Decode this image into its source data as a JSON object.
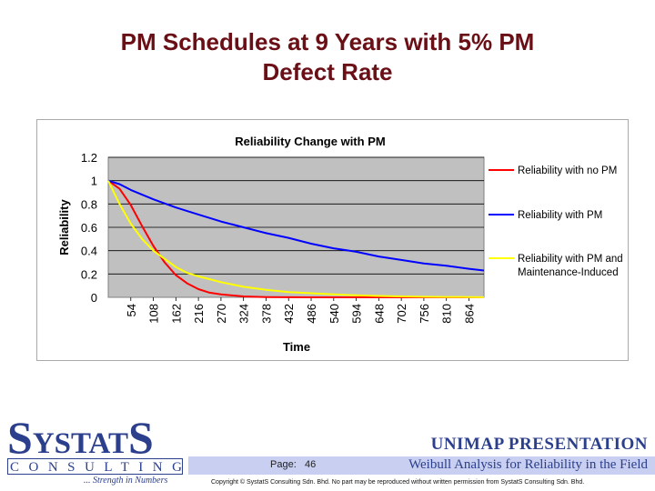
{
  "slide": {
    "title_line1": "PM Schedules at 9 Years with 5% PM",
    "title_line2": "Defect Rate"
  },
  "chart_data": {
    "type": "line",
    "title": "Reliability Change with PM",
    "xlabel": "Time",
    "ylabel": "Reliability",
    "ylim": [
      0,
      1.2
    ],
    "yticks": [
      "0",
      "0.2",
      "0.4",
      "0.6",
      "0.8",
      "1",
      "1.2"
    ],
    "xtick_labels": [
      "54",
      "108",
      "162",
      "216",
      "270",
      "324",
      "378",
      "432",
      "486",
      "540",
      "594",
      "648",
      "702",
      "756",
      "810",
      "864"
    ],
    "xlim": [
      0,
      900
    ],
    "grid": true,
    "plot_background": "#c0c0c0",
    "legend_position": "right",
    "series": [
      {
        "name": "Reliability with no PM",
        "color": "#ff0000",
        "x": [
          0,
          27,
          54,
          81,
          108,
          135,
          162,
          189,
          216,
          243,
          270,
          324,
          378,
          432,
          486,
          540,
          594,
          648,
          702,
          756,
          810,
          864,
          900
        ],
        "y": [
          1.0,
          0.93,
          0.79,
          0.61,
          0.44,
          0.3,
          0.19,
          0.12,
          0.07,
          0.04,
          0.025,
          0.008,
          0.002,
          0.001,
          0,
          0,
          0,
          0,
          0,
          0,
          0,
          0,
          0
        ]
      },
      {
        "name": "Reliability with PM",
        "color": "#0000ff",
        "x": [
          0,
          27,
          54,
          108,
          162,
          216,
          270,
          324,
          378,
          432,
          486,
          540,
          594,
          648,
          702,
          756,
          810,
          864,
          900
        ],
        "y": [
          1.0,
          0.97,
          0.92,
          0.84,
          0.77,
          0.71,
          0.65,
          0.6,
          0.55,
          0.51,
          0.46,
          0.42,
          0.39,
          0.35,
          0.32,
          0.29,
          0.27,
          0.245,
          0.23
        ]
      },
      {
        "name_line1": "Reliability with PM and",
        "name_line2": "Maintenance-Induced",
        "color": "#ffff00",
        "x": [
          0,
          27,
          54,
          81,
          108,
          135,
          162,
          189,
          216,
          270,
          324,
          378,
          432,
          486,
          540,
          594,
          648,
          702,
          756,
          810,
          864,
          900
        ],
        "y": [
          1.0,
          0.8,
          0.63,
          0.5,
          0.4,
          0.33,
          0.26,
          0.21,
          0.18,
          0.13,
          0.09,
          0.065,
          0.045,
          0.035,
          0.025,
          0.018,
          0.012,
          0.008,
          0.005,
          0.003,
          0.002,
          0.001
        ]
      }
    ]
  },
  "logo": {
    "main_part1": "S",
    "main_part2": "YSTAT",
    "main_part3": "S",
    "sub": "CONSULTING",
    "tagline": "... Strength in Numbers"
  },
  "footer": {
    "presentation_title": "UNIMAP PRESENTATION",
    "page_label": "Page:",
    "page_number": "46",
    "subtitle": "Weibull Analysis for Reliability in the Field",
    "copyright": "Copyright © SystatS Consulting Sdn. Bhd.  No part may be reproduced without written permission from SystatS Consulting Sdn. Bhd."
  }
}
